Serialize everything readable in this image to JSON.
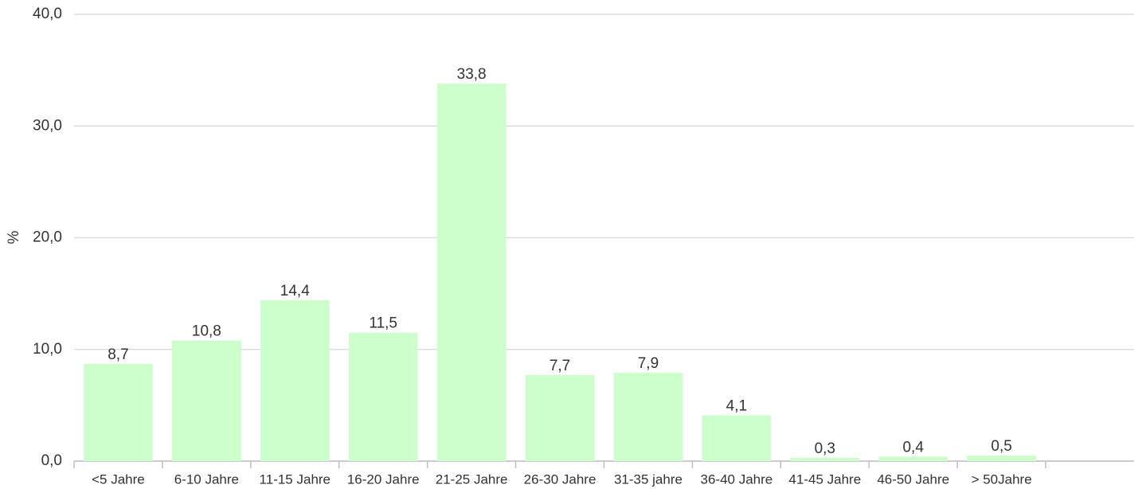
{
  "chart_data": {
    "type": "bar",
    "y_label": "%",
    "categories": [
      "<5 Jahre",
      "6-10 Jahre",
      "11-15 Jahre",
      "16-20 Jahre",
      "21-25 Jahre",
      "26-30 Jahre",
      "31-35 jahre",
      "36-40 Jahre",
      "41-45 Jahre",
      "46-50 Jahre",
      "> 50Jahre",
      null
    ],
    "values": [
      8.7,
      10.8,
      14.4,
      11.5,
      33.8,
      7.7,
      7.9,
      4.1,
      0.3,
      0.4,
      0.5,
      null
    ],
    "value_labels": [
      "8,7",
      "10,8",
      "14,4",
      "11,5",
      "33,8",
      "7,7",
      "7,9",
      "4,1",
      "0,3",
      "0,4",
      "0,5",
      null
    ],
    "color": "#ccffcc",
    "ylim": [
      0,
      40
    ],
    "yticks": [
      {
        "value": 0,
        "label": "0,0"
      },
      {
        "value": 10,
        "label": "10,0"
      },
      {
        "value": 20,
        "label": "20,0"
      },
      {
        "value": 30,
        "label": "30,0"
      },
      {
        "value": 40,
        "label": "40,0"
      }
    ],
    "grid": true
  }
}
